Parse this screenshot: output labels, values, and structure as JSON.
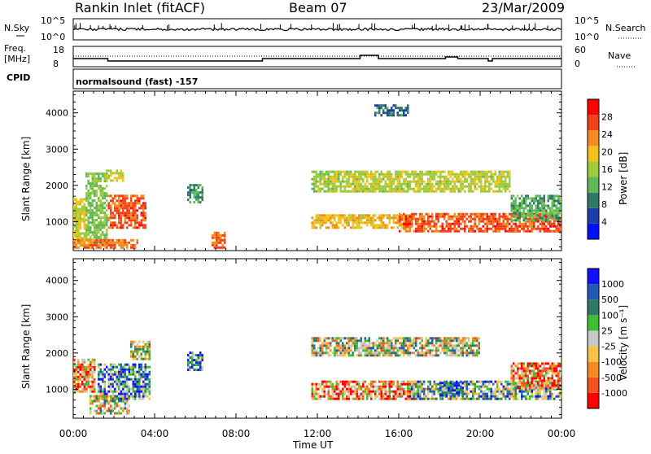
{
  "header": {
    "station_title": "Rankin Inlet (fitACF)",
    "beam": "Beam 07",
    "date": "23/Mar/2009"
  },
  "params": {
    "nsky_label": "N.Sky",
    "nsky_top": "10^5",
    "nsky_bottom": "10^0",
    "nsearch_label": "N.Search",
    "nsearch_top": "10^5",
    "nsearch_bottom": "10^0",
    "freq_label": "Freq.",
    "freq_unit": "[MHz]",
    "freq_top": "18",
    "freq_bottom": "8",
    "nave_label": "Nave",
    "nave_top": "60",
    "nave_bottom": "0",
    "cpid_label": "CPID",
    "cpid_value": "normalsound (fast) -157"
  },
  "colors": {
    "power_scale": [
      "#0010ff",
      "#1f3da8",
      "#2f7a66",
      "#5fb85a",
      "#9ecb3c",
      "#f4c21b",
      "#f58a1f",
      "#f0411a",
      "#ff0000"
    ],
    "velocity_scale": [
      "#ff0000",
      "#f4511f",
      "#f58a1f",
      "#f5c24a",
      "#c8c8c8",
      "#3fbf2f",
      "#2f7a66",
      "#1f59b3",
      "#1010ff"
    ]
  },
  "chart_data": [
    {
      "type": "heatmap",
      "name": "power",
      "ylabel": "Slant Range [km]",
      "yticks": [
        "1000",
        "2000",
        "3000",
        "4000"
      ],
      "ylim": [
        200,
        4600
      ],
      "xlim": [
        "00:00",
        "24:00"
      ],
      "colorbar_label": "Power [dB]",
      "colorbar_ticks": [
        "4",
        "8",
        "12",
        "16",
        "20",
        "24",
        "28"
      ],
      "colorbar_range": [
        0,
        32
      ],
      "blobs": [
        {
          "t0": 0.0,
          "t1": 0.6,
          "r0": 300,
          "r1": 1600,
          "level": 18
        },
        {
          "t0": 0.6,
          "t1": 1.7,
          "r0": 400,
          "r1": 2300,
          "level": 14
        },
        {
          "t0": 1.7,
          "t1": 3.6,
          "r0": 800,
          "r1": 1700,
          "level": 26
        },
        {
          "t0": 1.5,
          "t1": 2.5,
          "r0": 2100,
          "r1": 2400,
          "level": 18
        },
        {
          "t0": 0.0,
          "t1": 3.2,
          "r0": 250,
          "r1": 500,
          "level": 24
        },
        {
          "t0": 5.6,
          "t1": 6.3,
          "r0": 1500,
          "r1": 2000,
          "level": 10
        },
        {
          "t0": 6.8,
          "t1": 7.4,
          "r0": 250,
          "r1": 700,
          "level": 25
        },
        {
          "t0": 11.7,
          "t1": 16.5,
          "r0": 800,
          "r1": 1200,
          "level": 20
        },
        {
          "t0": 11.7,
          "t1": 13.8,
          "r0": 1800,
          "r1": 2400,
          "level": 16
        },
        {
          "t0": 13.8,
          "t1": 21.5,
          "r0": 1800,
          "r1": 2400,
          "level": 17
        },
        {
          "t0": 16.0,
          "t1": 24.0,
          "r0": 700,
          "r1": 1200,
          "level": 26
        },
        {
          "t0": 21.5,
          "t1": 24.0,
          "r0": 1000,
          "r1": 1700,
          "level": 12
        },
        {
          "t0": 14.8,
          "t1": 16.5,
          "r0": 3900,
          "r1": 4200,
          "level": 8
        }
      ]
    },
    {
      "type": "heatmap",
      "name": "velocity",
      "ylabel": "Slant Range [km]",
      "yticks": [
        "1000",
        "2000",
        "3000",
        "4000"
      ],
      "ylim": [
        200,
        4600
      ],
      "xlim": [
        "00:00",
        "24:00"
      ],
      "xticks": [
        "00:00",
        "04:00",
        "08:00",
        "12:00",
        "16:00",
        "20:00",
        "00:00"
      ],
      "xlabel": "Time UT",
      "colorbar_label": "Velocity [m s⁻¹]",
      "colorbar_ticks": [
        "-1000",
        "-500",
        "-100",
        "-25",
        "25",
        "100",
        "500",
        "1000"
      ],
      "blobs": [
        {
          "t0": 0.0,
          "t1": 1.0,
          "r0": 900,
          "r1": 1800,
          "level": 2
        },
        {
          "t0": 1.2,
          "t1": 3.8,
          "r0": 700,
          "r1": 1700,
          "level": 6
        },
        {
          "t0": 0.8,
          "t1": 2.8,
          "r0": 300,
          "r1": 800,
          "level": 4
        },
        {
          "t0": 2.8,
          "t1": 3.8,
          "r0": 1800,
          "r1": 2300,
          "level": 4
        },
        {
          "t0": 5.6,
          "t1": 6.3,
          "r0": 1500,
          "r1": 2000,
          "level": 6
        },
        {
          "t0": 11.7,
          "t1": 20.0,
          "r0": 1900,
          "r1": 2400,
          "level": 4
        },
        {
          "t0": 11.7,
          "t1": 17.0,
          "r0": 700,
          "r1": 1200,
          "level": 2
        },
        {
          "t0": 16.5,
          "t1": 24.0,
          "r0": 700,
          "r1": 1200,
          "level": 5
        },
        {
          "t0": 18.0,
          "t1": 19.2,
          "r0": 800,
          "r1": 1200,
          "level": 7
        },
        {
          "t0": 21.5,
          "t1": 24.0,
          "r0": 1000,
          "r1": 1700,
          "level": 2
        }
      ]
    }
  ]
}
